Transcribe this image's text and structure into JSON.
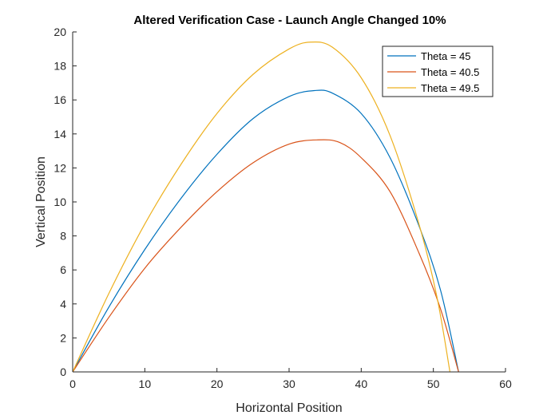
{
  "chart_data": {
    "type": "line",
    "title": "Altered Verification Case - Launch Angle Changed 10%",
    "xlabel": "Horizontal Position",
    "ylabel": "Vertical Position",
    "xlim": [
      0,
      60
    ],
    "ylim": [
      0,
      20
    ],
    "xticks": [
      0,
      10,
      20,
      30,
      40,
      50,
      60
    ],
    "yticks": [
      0,
      2,
      4,
      6,
      8,
      10,
      12,
      14,
      16,
      18,
      20
    ],
    "grid": false,
    "legend_position": "top-right",
    "series": [
      {
        "name": "Theta = 45",
        "color": "#0072BD",
        "x": [
          0,
          5,
          10,
          15,
          20,
          25,
          30,
          33.5,
          36,
          40,
          44,
          48,
          51,
          53.5
        ],
        "y": [
          0,
          3.8,
          7.2,
          10.2,
          12.8,
          14.9,
          16.2,
          16.55,
          16.4,
          15.2,
          12.6,
          8.6,
          4.8,
          0
        ]
      },
      {
        "name": "Theta = 40.5",
        "color": "#D95319",
        "x": [
          0,
          5,
          10,
          15,
          20,
          25,
          30,
          34,
          37,
          40,
          44,
          48,
          51,
          53.5
        ],
        "y": [
          0,
          3.2,
          6.1,
          8.5,
          10.6,
          12.3,
          13.4,
          13.65,
          13.5,
          12.6,
          10.6,
          7.0,
          3.7,
          0
        ]
      },
      {
        "name": "Theta = 49.5",
        "color": "#EDB120",
        "x": [
          0,
          5,
          10,
          15,
          20,
          25,
          30,
          33,
          36,
          40,
          44,
          48,
          50.5,
          52.3
        ],
        "y": [
          0,
          4.6,
          8.7,
          12.2,
          15.2,
          17.5,
          19.0,
          19.4,
          19.1,
          17.3,
          13.9,
          8.7,
          4.4,
          0
        ]
      }
    ]
  }
}
